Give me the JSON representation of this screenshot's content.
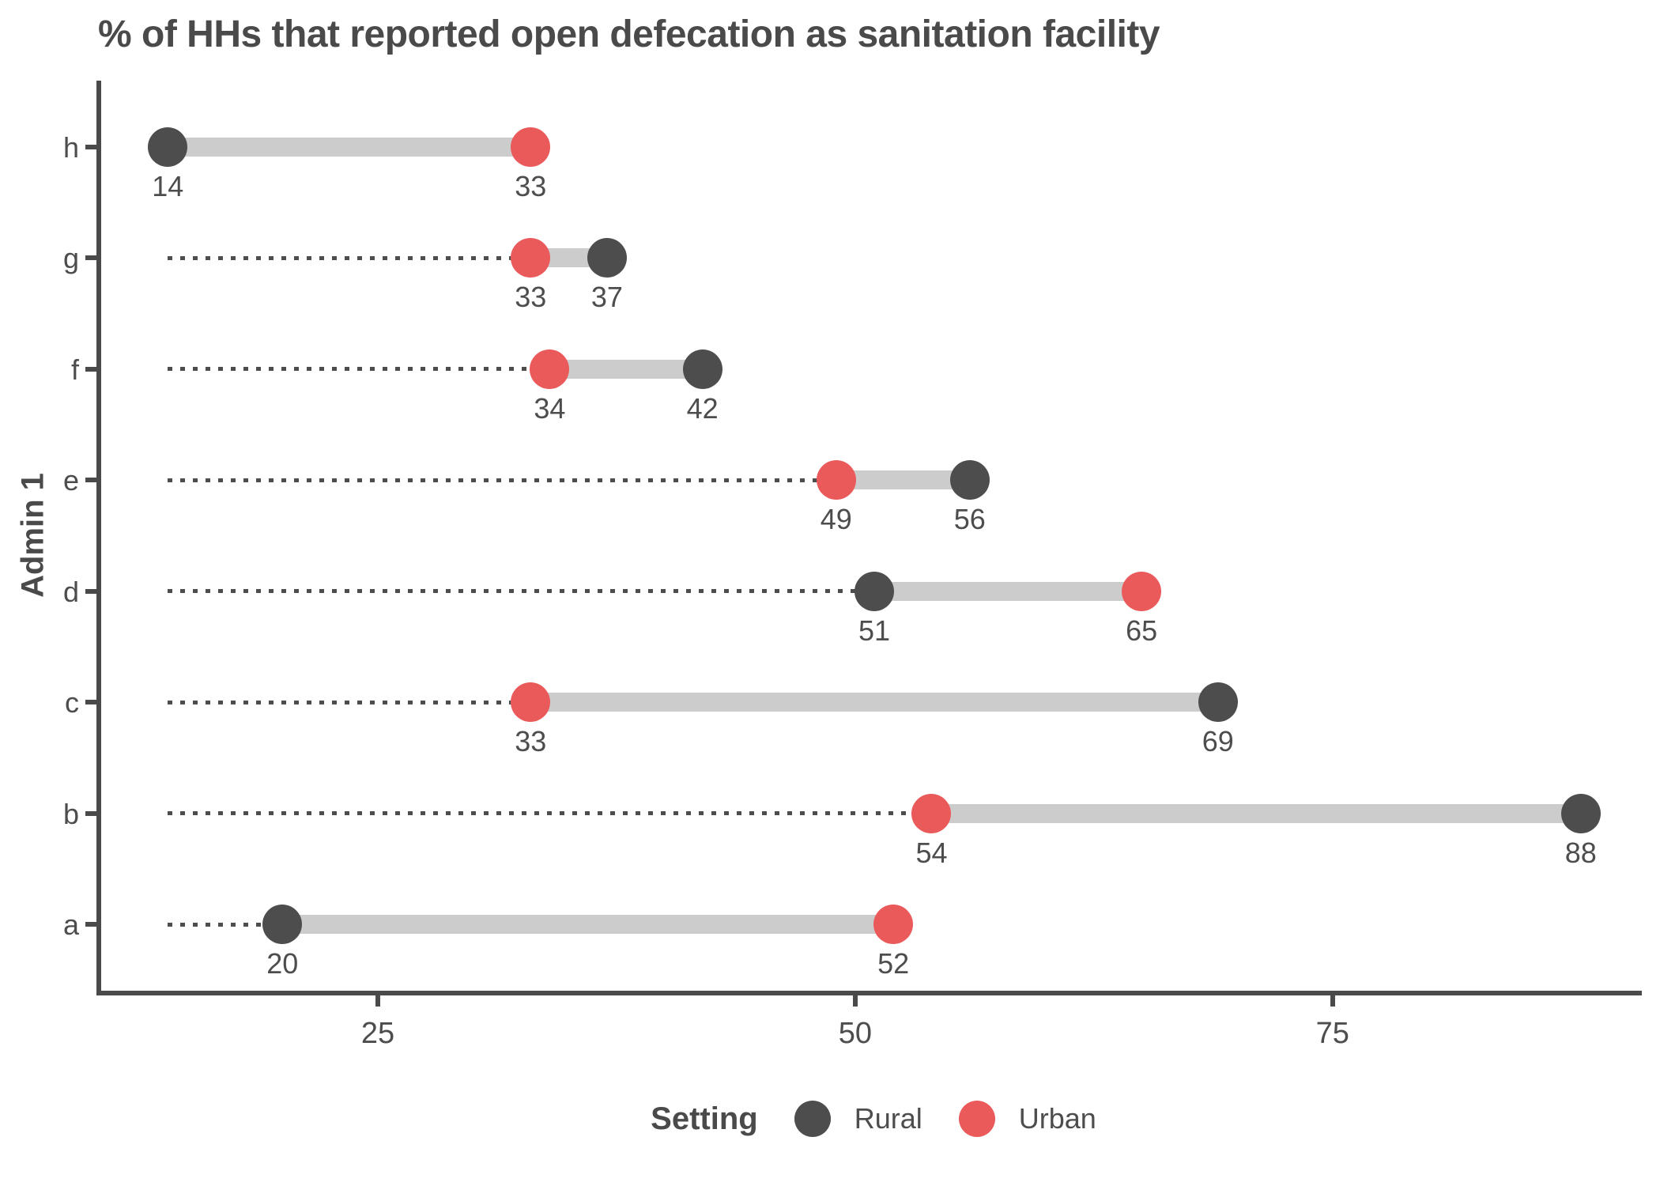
{
  "chart_data": {
    "type": "dumbbell",
    "title": "% of HHs that reported open defecation as sanitation facility",
    "xlabel": "",
    "ylabel": "Admin 1",
    "x_ticks": [
      25,
      50,
      75
    ],
    "xlim": [
      10.3,
      91.3
    ],
    "grid": "off",
    "dotted_leader_start_value": 14,
    "categories_top_to_bottom": [
      "h",
      "g",
      "f",
      "e",
      "d",
      "c",
      "b",
      "a"
    ],
    "rows": [
      {
        "category": "h",
        "rural": 14,
        "urban": 33
      },
      {
        "category": "g",
        "rural": 37,
        "urban": 33
      },
      {
        "category": "f",
        "rural": 42,
        "urban": 34
      },
      {
        "category": "e",
        "rural": 56,
        "urban": 49
      },
      {
        "category": "d",
        "rural": 51,
        "urban": 65
      },
      {
        "category": "c",
        "rural": 69,
        "urban": 33
      },
      {
        "category": "b",
        "rural": 88,
        "urban": 54
      },
      {
        "category": "a",
        "rural": 20,
        "urban": 52
      }
    ],
    "legend": {
      "position": "bottom-center",
      "title": "Setting",
      "entries": [
        {
          "label": "Rural",
          "color": "#4d4d4d"
        },
        {
          "label": "Urban",
          "color": "#ea5a5a"
        }
      ]
    },
    "colors": {
      "rural": "#4d4d4d",
      "urban": "#ea5a5a",
      "connector": "#cccccc",
      "dotted": "#4d4d4d",
      "axis": "#4a4a4a",
      "text": "#4d4d4d"
    }
  }
}
